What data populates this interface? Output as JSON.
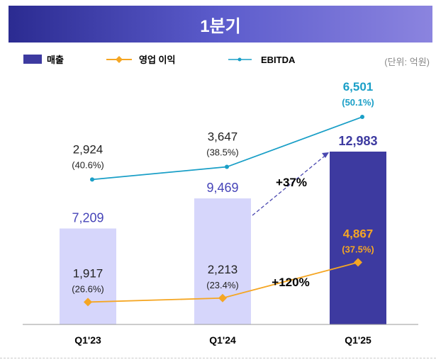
{
  "chart_data": {
    "type": "bar+line",
    "title": "1분기",
    "unit_note": "(단위: 억원)",
    "categories": [
      "Q1'23",
      "Q1'24",
      "Q1'25"
    ],
    "legend": [
      {
        "name": "매출",
        "marker": "bar",
        "color": "#3d3aa0"
      },
      {
        "name": "영업 이익",
        "marker": "line-diamond",
        "color": "#f5a623"
      },
      {
        "name": "EBITDA",
        "marker": "line-dot",
        "color": "#1a9fc7"
      }
    ],
    "series": [
      {
        "name": "매출",
        "type": "bar",
        "values": [
          7209,
          9469,
          12983
        ],
        "labels": [
          "7,209",
          "9,469",
          "12,983"
        ],
        "colors": [
          "#d6d6fb",
          "#d6d6fb",
          "#3d3aa0"
        ]
      },
      {
        "name": "영업 이익",
        "type": "line",
        "values": [
          1917,
          2213,
          4867
        ],
        "labels": [
          "1,917",
          "2,213",
          "4,867"
        ],
        "margins": [
          "(26.6%)",
          "(23.4%)",
          "(37.5%)"
        ]
      },
      {
        "name": "EBITDA",
        "type": "line",
        "values": [
          2924,
          3647,
          6501
        ],
        "labels": [
          "2,924",
          "3,647",
          "6,501"
        ],
        "margins": [
          "(40.6%)",
          "(38.5%)",
          "(50.1%)"
        ]
      }
    ],
    "annotations": [
      {
        "text": "+37%",
        "refers_to": "매출 Q1'24 → Q1'25"
      },
      {
        "text": "+120%",
        "refers_to": "영업 이익 Q1'24 → Q1'25"
      }
    ]
  }
}
